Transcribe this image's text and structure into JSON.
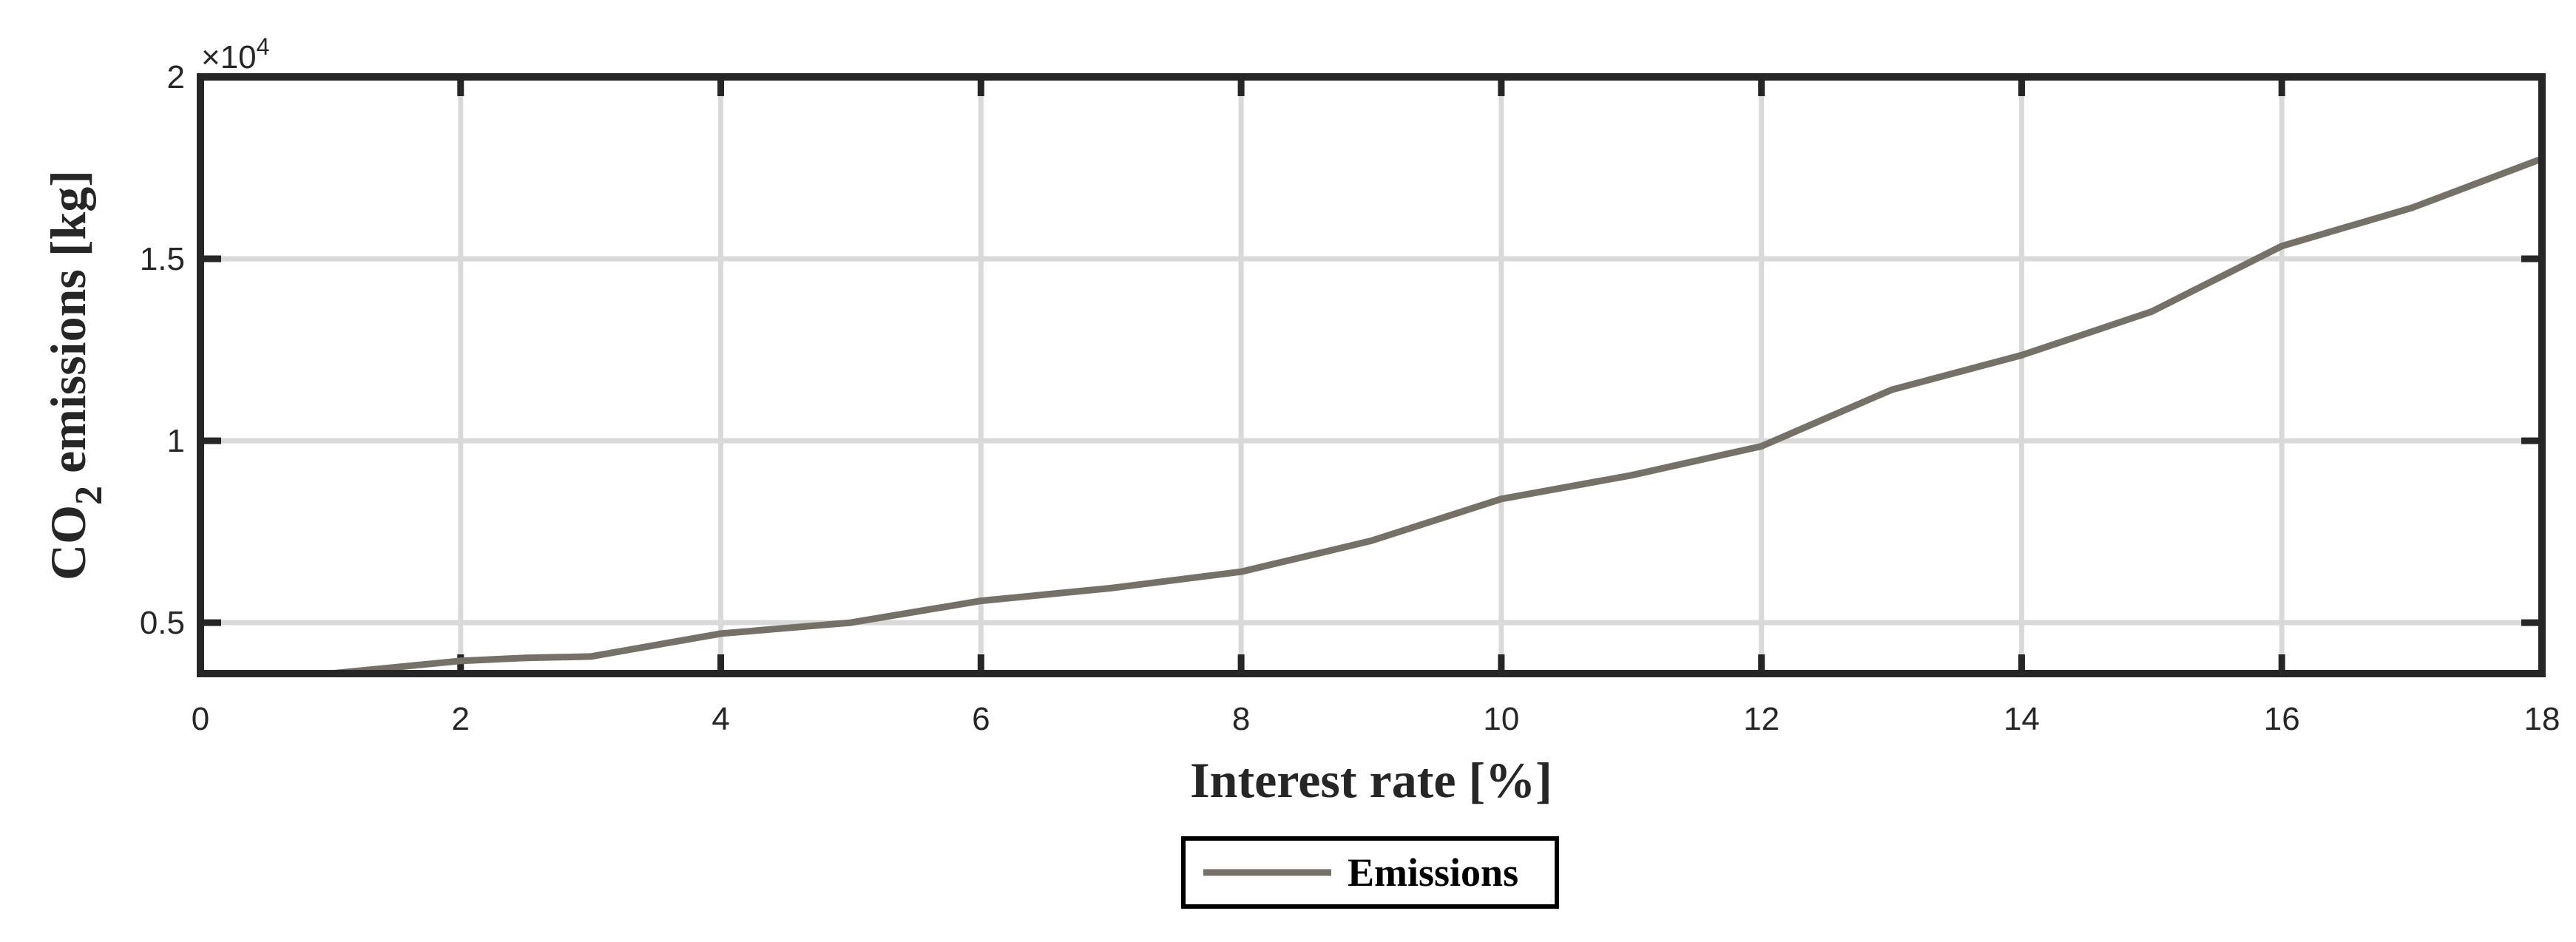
{
  "chart_data": {
    "type": "line",
    "xlabel": "Interest rate [%]",
    "ylabel_main": "CO",
    "ylabel_sub": "2",
    "ylabel_rest": " emissions [kg]",
    "y_exponent_prefix": "×10",
    "y_exponent_power": "4",
    "xlim": [
      0,
      18
    ],
    "ylim": [
      3600,
      20000
    ],
    "x_ticks": [
      0,
      2,
      4,
      6,
      8,
      10,
      12,
      14,
      16,
      18
    ],
    "x_tick_labels": [
      "0",
      "2",
      "4",
      "6",
      "8",
      "10",
      "12",
      "14",
      "16",
      "18"
    ],
    "y_ticks": [
      5000,
      10000,
      15000,
      20000
    ],
    "y_tick_labels": [
      "0.5",
      "1",
      "1.5",
      "2"
    ],
    "grid": true,
    "legend_position": "bottom-center",
    "colors": {
      "line": "#757068",
      "grid": "#d9d9d9",
      "axes": "#262626"
    },
    "series": [
      {
        "name": "Emissions",
        "x": [
          1,
          2,
          2.5,
          3,
          4,
          5,
          6,
          7,
          8,
          9,
          10,
          11,
          12,
          13,
          14,
          15,
          16,
          17,
          18
        ],
        "y": [
          3600,
          3950,
          4030,
          4070,
          4700,
          5000,
          5600,
          5950,
          6400,
          7250,
          8400,
          9050,
          9850,
          11400,
          12350,
          13550,
          15350,
          16400,
          17750
        ]
      }
    ]
  }
}
